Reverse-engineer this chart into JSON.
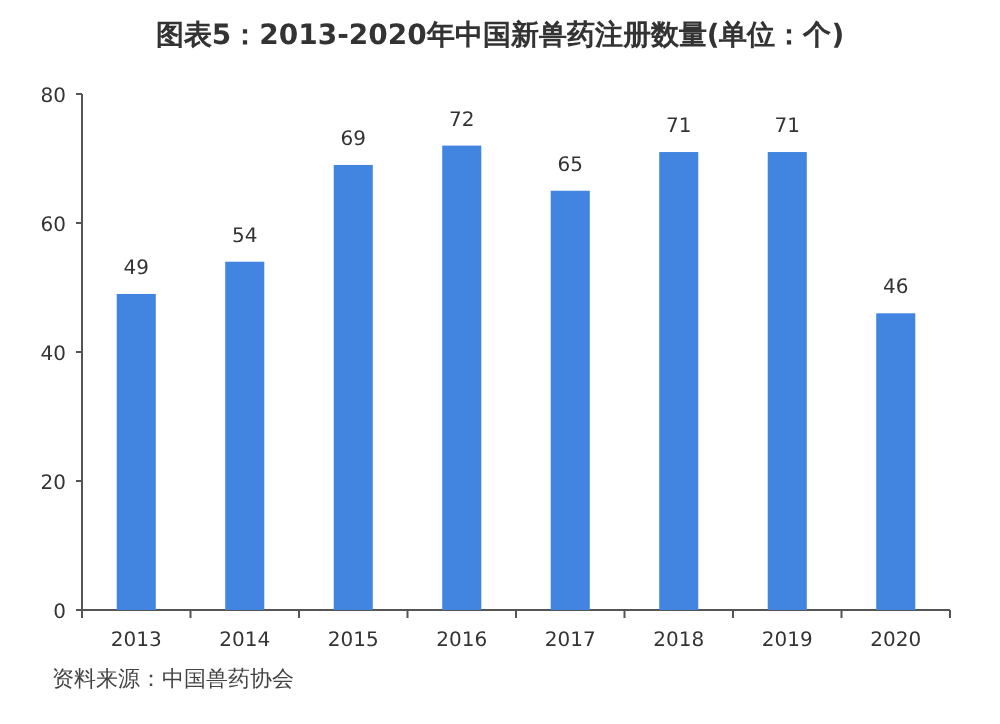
{
  "chart_data": {
    "type": "bar",
    "title": "图表5：2013-2020年中国新兽药注册数量(单位：个)",
    "categories": [
      "2013",
      "2014",
      "2015",
      "2016",
      "2017",
      "2018",
      "2019",
      "2020"
    ],
    "values": [
      49,
      54,
      69,
      72,
      65,
      71,
      71,
      46
    ],
    "color": "#4285e0",
    "ylim": [
      0,
      80
    ],
    "yticks": [
      0,
      20,
      40,
      60,
      80
    ],
    "data_labels": true,
    "annotations": [
      "资料来源：中国兽药协会"
    ]
  }
}
